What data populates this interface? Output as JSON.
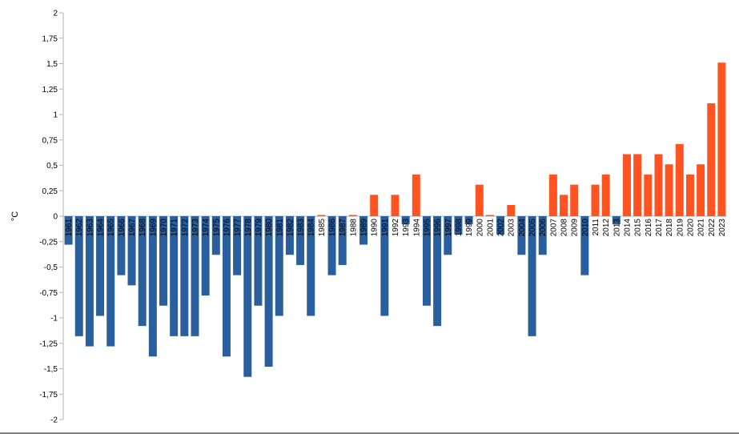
{
  "chart_data": {
    "type": "bar",
    "ylabel": "°C",
    "ylim": [
      -2,
      2
    ],
    "y_ticks": [
      "2",
      "1,75",
      "1,5",
      "1,25",
      "1",
      "0,75",
      "0,5",
      "0,25",
      "0",
      "-0,25",
      "-0,5",
      "-0,75",
      "-1",
      "-1,25",
      "-1,5",
      "-1,75",
      "-2"
    ],
    "grid": false,
    "legend": "none",
    "colors": {
      "positive": "#ff5322",
      "negative": "#2a5f9e"
    },
    "categories": [
      "1961",
      "1962",
      "1963",
      "1964",
      "1965",
      "1966",
      "1967",
      "1968",
      "1969",
      "1970",
      "1971",
      "1972",
      "1973",
      "1974",
      "1975",
      "1976",
      "1977",
      "1978",
      "1979",
      "1980",
      "1981",
      "1982",
      "1983",
      "1984",
      "1985",
      "1986",
      "1987",
      "1988",
      "1989",
      "1990",
      "1991",
      "1992",
      "1993",
      "1994",
      "1995",
      "1996",
      "1997",
      "1998",
      "1999",
      "2000",
      "2001",
      "2002",
      "2003",
      "2004",
      "2005",
      "2006",
      "2007",
      "2008",
      "2009",
      "2010",
      "2011",
      "2012",
      "2013",
      "2014",
      "2015",
      "2016",
      "2017",
      "2018",
      "2019",
      "2020",
      "2021",
      "2022",
      "2023"
    ],
    "values": [
      -0.28,
      -1.18,
      -1.28,
      -0.98,
      -1.28,
      -0.58,
      -0.68,
      -1.08,
      -1.38,
      -0.88,
      -1.18,
      -1.18,
      -1.18,
      -0.78,
      -0.38,
      -1.38,
      -0.58,
      -1.58,
      -0.88,
      -1.48,
      -0.98,
      -0.38,
      -0.48,
      -0.98,
      0.01,
      -0.58,
      -0.48,
      0.01,
      -0.28,
      0.21,
      -0.98,
      0.21,
      -0.08,
      0.41,
      -0.88,
      -1.08,
      -0.38,
      -0.18,
      -0.08,
      0.31,
      0.01,
      -0.18,
      0.11,
      -0.38,
      -1.18,
      -0.38,
      0.41,
      0.21,
      0.31,
      -0.58,
      0.31,
      0.41,
      -0.08,
      0.61,
      0.61,
      0.41,
      0.61,
      0.51,
      0.71,
      0.41,
      0.51,
      1.11,
      1.51
    ]
  }
}
